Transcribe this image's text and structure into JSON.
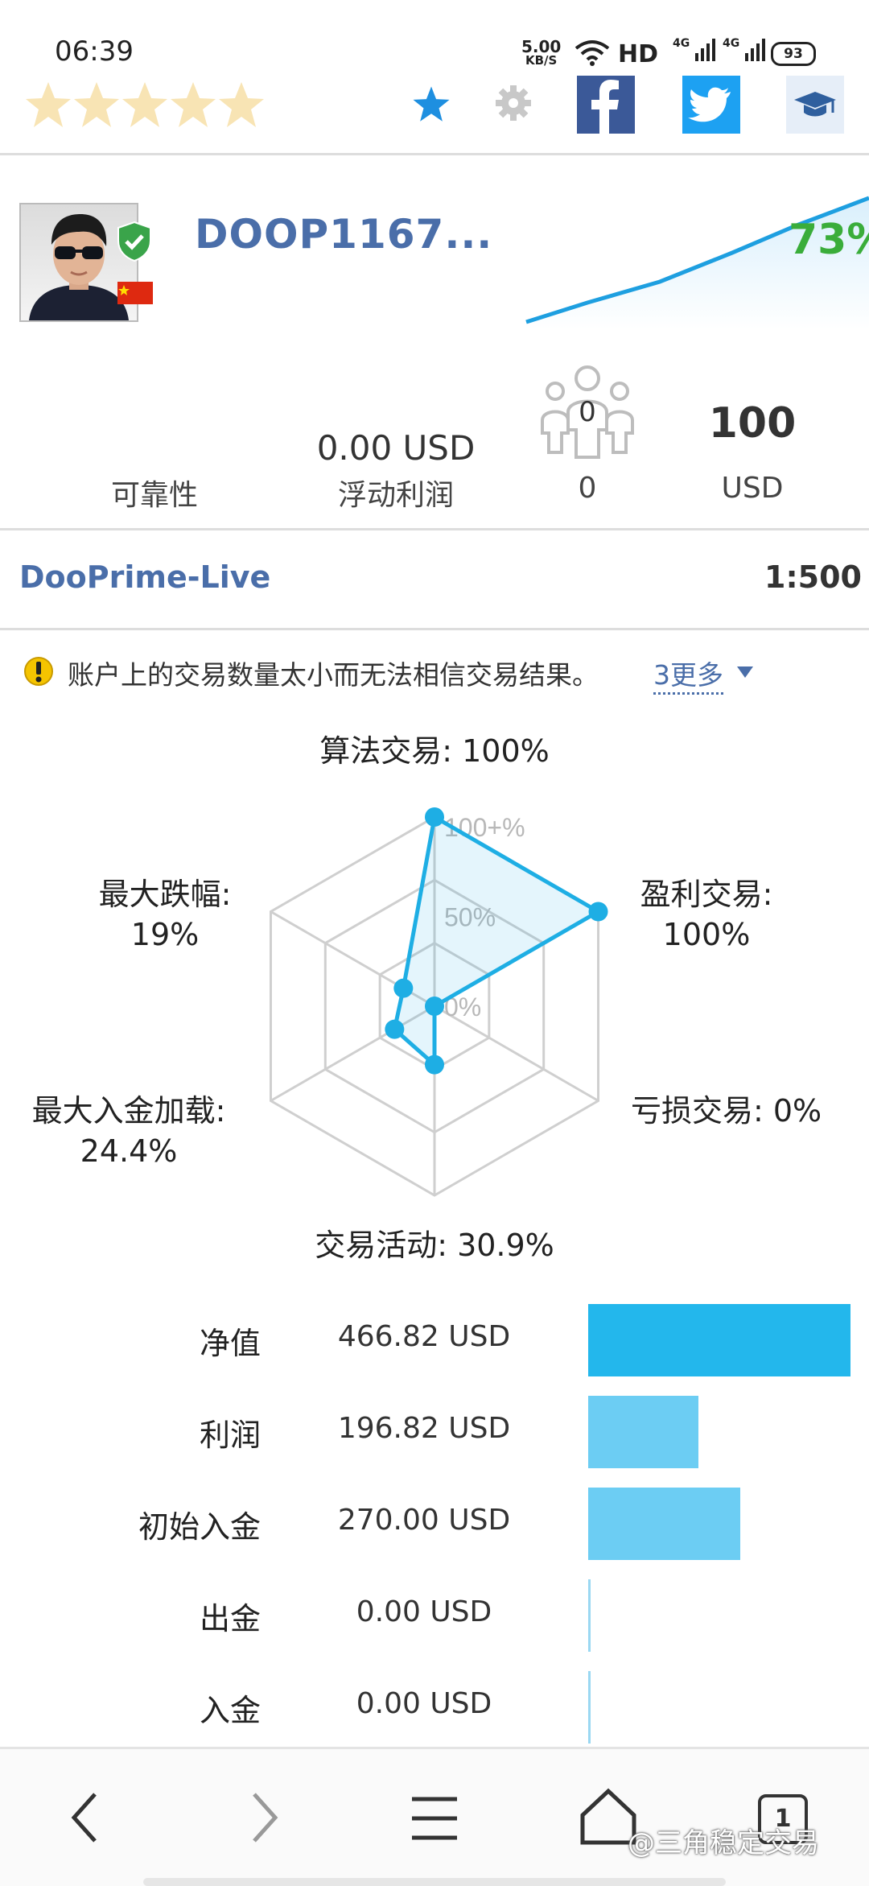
{
  "status_bar": {
    "time": "06:39",
    "net_speed_value": "5.00",
    "net_speed_unit": "KB/S",
    "hd_label": "HD",
    "signal1": "4G",
    "signal2": "4G",
    "battery": "93"
  },
  "toolbar": {
    "rating_stars": 5,
    "icons": [
      "star-icon",
      "gear-icon",
      "facebook-icon",
      "twitter-icon",
      "graduation-cap-icon"
    ]
  },
  "profile": {
    "name": "DOOP1167...",
    "growth": "73%"
  },
  "stats": {
    "reliability_label": "可靠性",
    "floating_profit_value": "0.00 USD",
    "floating_profit_label": "浮动利润",
    "subscribers_badge": "0",
    "subscribers_count": "0",
    "balance_value": "100",
    "balance_unit": "USD"
  },
  "account": {
    "server": "DooPrime-Live",
    "leverage": "1:500"
  },
  "warning": {
    "text": "账户上的交易数量太小而无法相信交易结果。",
    "more": "3更多"
  },
  "radar": {
    "scale_labels": [
      "100+%",
      "50%",
      "0%"
    ],
    "axes": [
      {
        "label": "算法交易: 100%",
        "value": 100
      },
      {
        "label": "盈利交易: 100%",
        "value": 100
      },
      {
        "label": "亏损交易: 0%",
        "value": 0
      },
      {
        "label": "交易活动: 30.9%",
        "value": 30.9
      },
      {
        "label": "最大入金加载: 24.4%",
        "value": 24.4
      },
      {
        "label": "最大跌幅: 19%",
        "value": 19
      }
    ],
    "label_text": {
      "algo": "算法交易: 100%",
      "profit_line1": "盈利交易:",
      "profit_line2": "100%",
      "loss": "亏损交易: 0%",
      "activity": "交易活动: 30.9%",
      "deposit_line1": "最大入金加载:",
      "deposit_line2": "24.4%",
      "drawdown_line1": "最大跌幅:",
      "drawdown_line2": "19%"
    },
    "color": "#1eaee4"
  },
  "summary": [
    {
      "label": "净值",
      "value": "466.82 USD",
      "amount": 466.82
    },
    {
      "label": "利润",
      "value": "196.82 USD",
      "amount": 196.82
    },
    {
      "label": "初始入金",
      "value": "270.00 USD",
      "amount": 270.0
    },
    {
      "label": "出金",
      "value": "0.00 USD",
      "amount": 0
    },
    {
      "label": "入金",
      "value": "0.00 USD",
      "amount": 0
    }
  ],
  "nav": {
    "tab_count": "1",
    "icons": [
      "back-icon",
      "forward-icon",
      "menu-icon",
      "home-icon",
      "tabs-icon"
    ]
  },
  "watermark": "@三角稳定交易"
}
